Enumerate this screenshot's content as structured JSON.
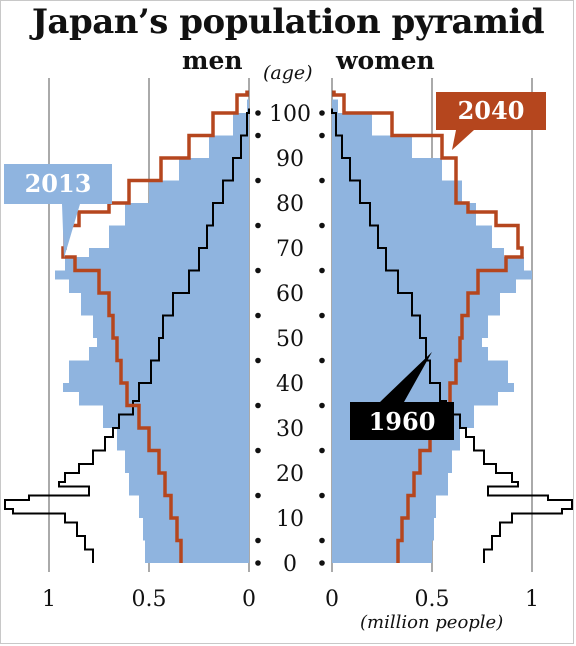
{
  "title": "Japan’s population pyramid",
  "headers": {
    "men": "men",
    "women": "women",
    "age": "(age)"
  },
  "unit_label": "(million people)",
  "colors": {
    "y2013": "#8fb4df",
    "y2040": "#b5461e",
    "y1960": "#000000",
    "axis": "#555555"
  },
  "callouts": {
    "y2013": "2013",
    "y2040": "2040",
    "y1960": "1960"
  },
  "chart_data": {
    "type": "area",
    "title": "Japan’s population pyramid",
    "xlabel": "(million people)",
    "ylabel": "(age)",
    "x_ticks_men": [
      "1",
      "0.5",
      "0"
    ],
    "x_ticks_women": [
      "0",
      "0.5",
      "1"
    ],
    "y_ticks": [
      "0",
      "10",
      "20",
      "30",
      "40",
      "50",
      "60",
      "70",
      "80",
      "90",
      "100"
    ],
    "xlim": [
      0,
      1
    ],
    "ylim": [
      0,
      105
    ],
    "series": [
      {
        "name": "2013",
        "style": "filled-bars",
        "men": {
          "ages": [
            0,
            5,
            10,
            15,
            20,
            25,
            30,
            35,
            38,
            40,
            45,
            48,
            50,
            55,
            60,
            63,
            65,
            68,
            70,
            75,
            80,
            85,
            90,
            95,
            100
          ],
          "values": [
            0.52,
            0.53,
            0.55,
            0.6,
            0.62,
            0.66,
            0.73,
            0.85,
            0.93,
            0.9,
            0.8,
            0.76,
            0.78,
            0.84,
            0.9,
            0.97,
            0.92,
            0.8,
            0.7,
            0.62,
            0.5,
            0.35,
            0.2,
            0.08,
            0.01
          ]
        },
        "women": {
          "ages": [
            0,
            5,
            10,
            15,
            20,
            25,
            30,
            35,
            38,
            40,
            45,
            48,
            50,
            55,
            60,
            63,
            65,
            68,
            70,
            75,
            80,
            85,
            90,
            95,
            100
          ],
          "values": [
            0.5,
            0.51,
            0.52,
            0.58,
            0.6,
            0.64,
            0.71,
            0.83,
            0.91,
            0.88,
            0.78,
            0.75,
            0.78,
            0.84,
            0.92,
            1.0,
            0.96,
            0.86,
            0.8,
            0.72,
            0.65,
            0.55,
            0.4,
            0.2,
            0.03
          ]
        }
      },
      {
        "name": "1960",
        "style": "step-line",
        "men": {
          "ages": [
            0,
            3,
            6,
            9,
            11,
            12,
            14,
            15,
            17,
            18,
            20,
            22,
            25,
            28,
            30,
            33,
            36,
            40,
            45,
            50,
            55,
            60,
            65,
            70,
            75,
            80,
            85,
            90,
            95,
            100
          ],
          "values": [
            0.78,
            0.82,
            0.86,
            0.92,
            1.18,
            1.22,
            1.1,
            0.8,
            0.95,
            0.92,
            0.85,
            0.78,
            0.72,
            0.68,
            0.65,
            0.58,
            0.55,
            0.49,
            0.45,
            0.43,
            0.38,
            0.3,
            0.25,
            0.21,
            0.18,
            0.13,
            0.08,
            0.04,
            0.01,
            0.0
          ]
        },
        "women": {
          "ages": [
            0,
            3,
            6,
            9,
            11,
            12,
            14,
            15,
            17,
            18,
            20,
            22,
            25,
            28,
            30,
            33,
            36,
            40,
            45,
            50,
            55,
            60,
            65,
            70,
            75,
            80,
            85,
            90,
            95,
            100
          ],
          "values": [
            0.76,
            0.8,
            0.84,
            0.9,
            1.15,
            1.2,
            1.08,
            0.78,
            0.93,
            0.9,
            0.82,
            0.76,
            0.71,
            0.67,
            0.64,
            0.57,
            0.54,
            0.49,
            0.47,
            0.44,
            0.4,
            0.33,
            0.27,
            0.23,
            0.19,
            0.14,
            0.09,
            0.05,
            0.02,
            0.0
          ]
        }
      },
      {
        "name": "2040",
        "style": "step-line",
        "men": {
          "ages": [
            0,
            5,
            10,
            15,
            20,
            25,
            30,
            35,
            40,
            45,
            50,
            55,
            60,
            65,
            68,
            70,
            75,
            78,
            80,
            85,
            90,
            95,
            100,
            104
          ],
          "values": [
            0.34,
            0.36,
            0.39,
            0.42,
            0.45,
            0.5,
            0.55,
            0.61,
            0.64,
            0.66,
            0.68,
            0.7,
            0.75,
            0.87,
            0.93,
            0.92,
            0.85,
            0.7,
            0.6,
            0.44,
            0.3,
            0.18,
            0.06,
            0.01
          ]
        },
        "women": {
          "ages": [
            0,
            5,
            10,
            15,
            20,
            25,
            30,
            35,
            40,
            45,
            50,
            55,
            60,
            65,
            68,
            70,
            75,
            78,
            80,
            85,
            90,
            95,
            100,
            104
          ],
          "values": [
            0.33,
            0.35,
            0.38,
            0.41,
            0.44,
            0.49,
            0.54,
            0.59,
            0.62,
            0.64,
            0.65,
            0.68,
            0.73,
            0.87,
            0.95,
            0.93,
            0.82,
            0.68,
            0.62,
            0.62,
            0.55,
            0.3,
            0.06,
            0.01
          ]
        }
      }
    ]
  }
}
